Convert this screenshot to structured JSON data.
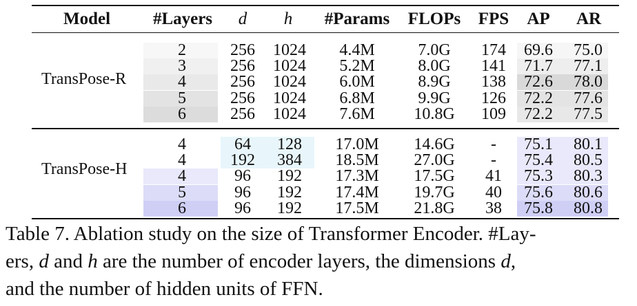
{
  "table": {
    "headers": {
      "model": "Model",
      "layers": "#Layers",
      "d": "d",
      "h": "h",
      "params": "#Params",
      "flops": "FLOPs",
      "fps": "FPS",
      "ap": "AP",
      "ar": "AR"
    },
    "groups": [
      {
        "model": "TransPose-R",
        "rows": [
          {
            "layers": "2",
            "d": "256",
            "h": "1024",
            "params": "4.4M",
            "flops": "7.0G",
            "fps": "174",
            "ap": "69.6",
            "ar": "75.0"
          },
          {
            "layers": "3",
            "d": "256",
            "h": "1024",
            "params": "5.2M",
            "flops": "8.0G",
            "fps": "141",
            "ap": "71.7",
            "ar": "77.1"
          },
          {
            "layers": "4",
            "d": "256",
            "h": "1024",
            "params": "6.0M",
            "flops": "8.9G",
            "fps": "138",
            "ap": "72.6",
            "ar": "78.0"
          },
          {
            "layers": "5",
            "d": "256",
            "h": "1024",
            "params": "6.8M",
            "flops": "9.9G",
            "fps": "126",
            "ap": "72.2",
            "ar": "77.6"
          },
          {
            "layers": "6",
            "d": "256",
            "h": "1024",
            "params": "7.6M",
            "flops": "10.8G",
            "fps": "109",
            "ap": "72.2",
            "ar": "77.5"
          }
        ]
      },
      {
        "model": "TransPose-H",
        "rows": [
          {
            "layers": "4",
            "d": "64",
            "h": "128",
            "params": "17.0M",
            "flops": "14.6G",
            "fps": "-",
            "ap": "75.1",
            "ar": "80.1"
          },
          {
            "layers": "4",
            "d": "192",
            "h": "384",
            "params": "18.5M",
            "flops": "27.0G",
            "fps": "-",
            "ap": "75.4",
            "ar": "80.5"
          },
          {
            "layers": "4",
            "d": "96",
            "h": "192",
            "params": "17.3M",
            "flops": "17.5G",
            "fps": "41",
            "ap": "75.3",
            "ar": "80.3"
          },
          {
            "layers": "5",
            "d": "96",
            "h": "192",
            "params": "17.4M",
            "flops": "19.7G",
            "fps": "40",
            "ap": "75.6",
            "ar": "80.6"
          },
          {
            "layers": "6",
            "d": "96",
            "h": "192",
            "params": "17.5M",
            "flops": "21.8G",
            "fps": "38",
            "ap": "75.8",
            "ar": "80.8"
          }
        ]
      }
    ]
  },
  "caption": {
    "line1": "Table 7. Ablation study on the size of Transformer Encoder. #Lay-",
    "line2_a": "ers, ",
    "line2_d": "d",
    "line2_b": " and ",
    "line2_h": "h",
    "line2_c": " are the number of encoder layers, the dimensions ",
    "line2_d2": "d",
    "line2_e": ",",
    "line3": "and the number of hidden units of FFN."
  },
  "colors": {
    "gray_shades": [
      "#f7f7f7",
      "#f0f0f0",
      "#e9e9e9",
      "#e3e3e3",
      "#dcdcdc"
    ],
    "ap_ar_gray": [
      "#f6f6f6",
      "#eeeeee",
      "#d9d9d9",
      "#e4e4e4",
      "#e8e8e8"
    ],
    "cyan_light": "#e8f6fb",
    "violet_shades": [
      "#ffffff",
      "#f3f3fd",
      "#e9e9fb",
      "#dcdcf8",
      "#cfcff6"
    ]
  }
}
